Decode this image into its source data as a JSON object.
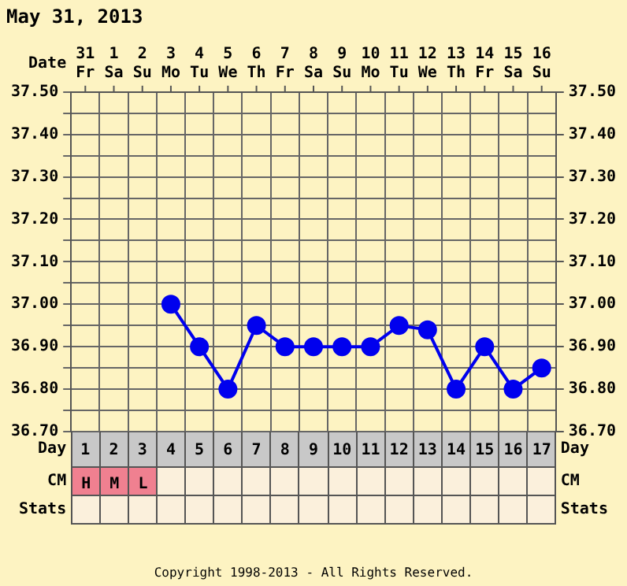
{
  "chart_data": {
    "type": "line",
    "title": "May 31, 2013",
    "xlabel": "Date",
    "x2label": "Day",
    "categories": [
      "31 Fr",
      "1 Sa",
      "2 Su",
      "3 Mo",
      "4 Tu",
      "5 We",
      "6 Th",
      "7 Fr",
      "8 Sa",
      "9 Su",
      "10 Mo",
      "11 Tu",
      "12 We",
      "13 Th",
      "14 Fr",
      "15 Sa",
      "16 Su"
    ],
    "series": [
      {
        "color": "#0000ee",
        "values": [
          null,
          null,
          null,
          37.0,
          36.9,
          36.8,
          36.95,
          36.9,
          36.9,
          36.9,
          36.9,
          36.95,
          36.94,
          36.8,
          36.9,
          36.8,
          36.85
        ]
      }
    ],
    "ylim": [
      36.7,
      37.5
    ],
    "yticks": [
      {
        "value": 36.7,
        "label": "36.70"
      },
      {
        "value": 36.75,
        "label": null
      },
      {
        "value": 36.8,
        "label": "36.80"
      },
      {
        "value": 36.85,
        "label": null
      },
      {
        "value": 36.9,
        "label": "36.90"
      },
      {
        "value": 36.95,
        "label": null
      },
      {
        "value": 37.0,
        "label": "37.00"
      },
      {
        "value": 37.05,
        "label": null
      },
      {
        "value": 37.1,
        "label": "37.10"
      },
      {
        "value": 37.15,
        "label": null
      },
      {
        "value": 37.2,
        "label": "37.20"
      },
      {
        "value": 37.25,
        "label": null
      },
      {
        "value": 37.3,
        "label": "37.30"
      },
      {
        "value": 37.35,
        "label": null
      },
      {
        "value": 37.4,
        "label": "37.40"
      },
      {
        "value": 37.45,
        "label": null
      },
      {
        "value": 37.5,
        "label": "37.50"
      }
    ],
    "y2lim": [
      36.7,
      37.5
    ],
    "y2ticks": [
      {
        "value": 36.7,
        "label": "36.70"
      },
      {
        "value": 36.8,
        "label": "36.80"
      },
      {
        "value": 36.9,
        "label": "36.90"
      },
      {
        "value": 37.0,
        "label": "37.00"
      },
      {
        "value": 37.1,
        "label": "37.10"
      },
      {
        "value": 37.2,
        "label": "37.20"
      },
      {
        "value": 37.3,
        "label": "37.30"
      },
      {
        "value": 37.4,
        "label": "37.40"
      },
      {
        "value": 37.5,
        "label": "37.50"
      }
    ],
    "x2lim": [
      0.5,
      17.5
    ],
    "x2ticks": [
      1,
      2,
      3,
      4,
      5,
      6,
      7,
      8,
      9,
      10,
      11,
      12,
      13,
      14,
      15,
      16,
      17
    ],
    "grid": true,
    "legend": false,
    "marker": "circle",
    "line_style": "solid",
    "annotations": [
      "CM",
      "Stats",
      "H",
      "M",
      "L",
      "Copyright 1998-2013 - All Rights Reserved."
    ]
  }
}
